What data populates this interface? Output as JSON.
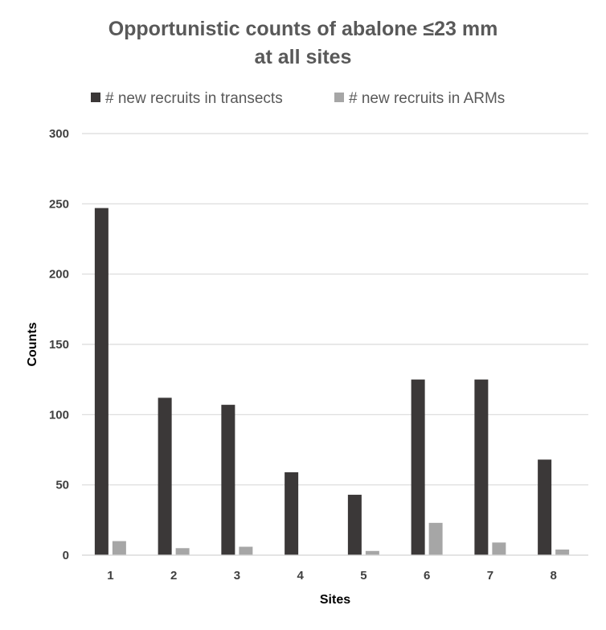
{
  "chart_data": {
    "type": "bar",
    "title_lines": [
      "Opportunistic counts of abalone ≤23 mm",
      "at all sites"
    ],
    "xlabel": "Sites",
    "ylabel": "Counts",
    "categories": [
      "1",
      "2",
      "3",
      "4",
      "5",
      "6",
      "7",
      "8"
    ],
    "ylim": [
      0,
      300
    ],
    "yticks": [
      "0",
      "50",
      "100",
      "150",
      "200",
      "250",
      "300"
    ],
    "grid": true,
    "legend_position": "top",
    "series": [
      {
        "name": "# new recruits in transects",
        "color": "#3b3838",
        "values": [
          247,
          112,
          107,
          59,
          43,
          125,
          125,
          68
        ]
      },
      {
        "name": "# new recruits in ARMs",
        "color": "#a6a6a6",
        "values": [
          10,
          5,
          6,
          0,
          3,
          23,
          9,
          4
        ]
      }
    ]
  }
}
